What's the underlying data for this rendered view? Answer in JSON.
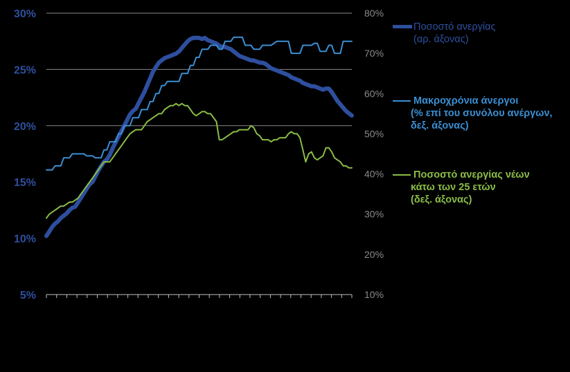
{
  "chart_data": {
    "type": "line",
    "title": "",
    "x_tick_count": 31,
    "left_axis": {
      "ylim": [
        5,
        30
      ],
      "ticks": [
        5,
        10,
        15,
        20,
        25,
        30
      ],
      "tick_labels": [
        "5%",
        "10%",
        "15%",
        "20%",
        "25%",
        "30%"
      ]
    },
    "right_axis": {
      "ylim": [
        10,
        80
      ],
      "ticks": [
        10,
        20,
        30,
        40,
        50,
        60,
        70,
        80
      ],
      "tick_labels": [
        "10%",
        "20%",
        "30%",
        "40%",
        "50%",
        "60%",
        "70%",
        "80%"
      ]
    },
    "gridlines": [
      20,
      25,
      30
    ],
    "series": [
      {
        "name": "Ποσοστό ανεργίας (αρ. άξονας)",
        "axis": "left",
        "color": "#2e4f9e",
        "values": [
          10.2,
          10.6,
          11.0,
          11.3,
          11.5,
          11.8,
          12.0,
          12.2,
          12.5,
          12.7,
          12.8,
          13.2,
          13.6,
          14.0,
          14.4,
          14.8,
          15.0,
          15.5,
          16.0,
          16.4,
          16.8,
          17.0,
          17.4,
          18.0,
          18.5,
          19.0,
          19.5,
          20.0,
          20.5,
          21.0,
          21.3,
          21.5,
          22.0,
          22.5,
          23.0,
          23.6,
          24.2,
          24.8,
          25.2,
          25.6,
          25.8,
          26.0,
          26.1,
          26.2,
          26.3,
          26.4,
          26.6,
          26.9,
          27.2,
          27.5,
          27.7,
          27.8,
          27.8,
          27.8,
          27.7,
          27.8,
          27.6,
          27.5,
          27.4,
          27.3,
          27.1,
          27.0,
          27.0,
          26.9,
          26.8,
          26.6,
          26.4,
          26.2,
          26.1,
          26.0,
          25.9,
          25.8,
          25.8,
          25.7,
          25.6,
          25.6,
          25.5,
          25.3,
          25.1,
          25.0,
          24.9,
          24.8,
          24.7,
          24.6,
          24.5,
          24.3,
          24.2,
          24.1,
          24.0,
          23.8,
          23.7,
          23.6,
          23.5,
          23.5,
          23.4,
          23.3,
          23.2,
          23.3,
          23.3,
          23.0,
          22.6,
          22.2,
          21.9,
          21.6,
          21.3,
          21.1,
          20.9
        ]
      },
      {
        "name": "Μακροχρόνια άνεργοι (% επί του συνόλου ανέργων, δεξ. άξονας)",
        "axis": "right",
        "color": "#3b8fd3",
        "values": [
          41.0,
          41.0,
          41.0,
          42.0,
          42.0,
          42.0,
          44.0,
          44.0,
          44.0,
          45.0,
          45.0,
          45.0,
          45.0,
          45.0,
          44.5,
          44.5,
          44.5,
          44.0,
          44.0,
          44.0,
          46.0,
          46.0,
          48.0,
          48.0,
          48.0,
          50.0,
          50.0,
          52.0,
          52.0,
          52.0,
          54.0,
          54.0,
          54.0,
          56.0,
          56.0,
          56.0,
          58.0,
          58.0,
          60.0,
          60.0,
          62.0,
          62.0,
          63.0,
          63.0,
          63.0,
          63.0,
          63.0,
          65.0,
          65.0,
          65.0,
          67.0,
          67.0,
          69.0,
          69.0,
          71.0,
          71.0,
          71.0,
          72.0,
          72.0,
          72.0,
          71.0,
          71.0,
          73.0,
          73.0,
          73.0,
          74.0,
          74.0,
          74.0,
          74.0,
          72.0,
          72.0,
          72.0,
          71.0,
          71.0,
          71.0,
          72.0,
          72.0,
          72.0,
          72.0,
          72.5,
          73.0,
          73.0,
          73.0,
          73.0,
          73.0,
          70.0,
          70.0,
          70.0,
          70.0,
          72.0,
          72.0,
          72.0,
          72.0,
          72.5,
          72.5,
          70.5,
          70.5,
          70.5,
          72.0,
          72.0,
          70.0,
          70.0,
          70.0,
          73.0,
          73.0,
          73.0,
          73.0
        ]
      },
      {
        "name": "Ποσοστό ανεργίας νέων κάτω των 25 ετών (δεξ. άξονας)",
        "axis": "right",
        "color": "#8bbd47",
        "values": [
          29.0,
          30.0,
          30.5,
          31.0,
          31.5,
          32.0,
          32.0,
          32.5,
          33.0,
          33.0,
          33.5,
          34.0,
          35.0,
          36.0,
          37.0,
          38.0,
          39.0,
          40.0,
          41.0,
          42.0,
          43.0,
          43.0,
          43.0,
          44.0,
          45.0,
          46.0,
          47.0,
          48.0,
          49.0,
          50.0,
          50.5,
          51.0,
          51.0,
          51.0,
          52.0,
          53.0,
          53.5,
          54.0,
          54.5,
          55.0,
          55.0,
          56.0,
          56.5,
          57.0,
          57.0,
          57.5,
          57.0,
          57.5,
          57.0,
          57.0,
          56.0,
          55.0,
          54.5,
          55.0,
          55.5,
          55.5,
          55.0,
          55.0,
          54.0,
          53.0,
          48.5,
          48.5,
          49.0,
          49.5,
          50.0,
          50.5,
          50.5,
          51.0,
          51.0,
          51.0,
          51.0,
          52.0,
          51.5,
          50.0,
          49.5,
          48.5,
          48.5,
          48.5,
          48.0,
          48.5,
          48.5,
          49.0,
          49.0,
          49.0,
          50.0,
          50.5,
          50.0,
          50.0,
          49.0,
          46.0,
          43.0,
          45.0,
          45.5,
          44.0,
          43.5,
          44.0,
          44.5,
          46.5,
          46.5,
          45.5,
          44.0,
          43.5,
          43.0,
          42.0,
          42.0,
          41.5,
          41.5
        ]
      }
    ],
    "legend": [
      {
        "line1": "Ποσοστό ανεργίας",
        "line2": "(αρ. άξονας)",
        "line3": "",
        "text_color": "#2e4f9e"
      },
      {
        "line1": " Μακροχρόνια άνεργοι",
        "line2": "(% επί του συνόλου ανέργων,",
        "line3": "δεξ. άξονας)",
        "text_color": "#3b8fd3"
      },
      {
        "line1": " Ποσοστό ανεργίας νέων",
        "line2": "κάτω των 25 ετών",
        "line3": "(δεξ. άξονας)",
        "text_color": "#8bbd47"
      }
    ],
    "legend_position": "right",
    "axis_colors": {
      "left_tick_labels": "#2e4f9e",
      "right_tick_labels": "#8a8a8a",
      "grid": "#8a8a8a",
      "axis": "#bfbfbf"
    }
  }
}
